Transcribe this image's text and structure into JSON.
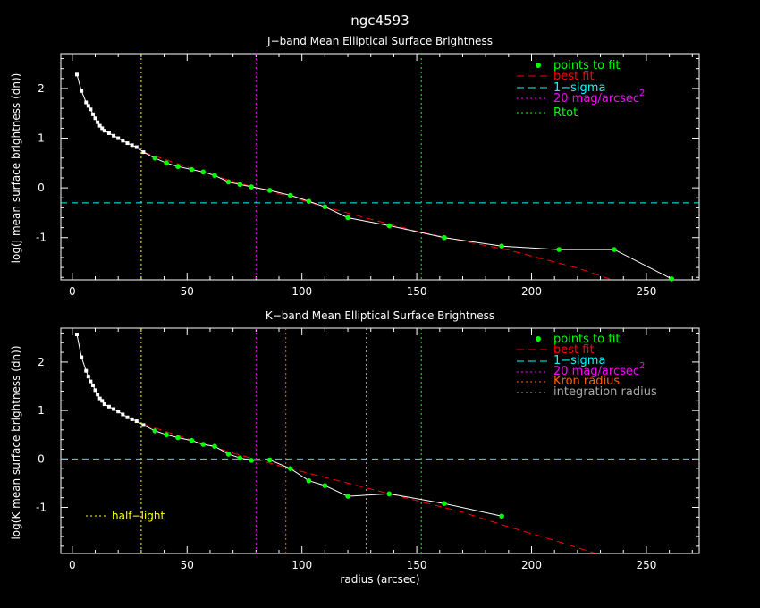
{
  "page_title": "ngc4593",
  "colors": {
    "background": "#000000",
    "axes": "#ffffff",
    "data_line": "#ffffff",
    "fit_points": "#00ff00",
    "best_fit": "#ff0000",
    "sigma": "#00ffff",
    "mag20": "#ff00ff",
    "rtot": "#00ff00",
    "half_light": "#ffff00",
    "kron": "#ff6000",
    "integration": "#aaaaaa"
  },
  "chart_data": [
    {
      "type": "line",
      "title": "J−band Mean Elliptical Surface Brightness",
      "xlabel": "",
      "ylabel": "log(J mean surface brightness (dn))",
      "xlim": [
        -5,
        273
      ],
      "ylim": [
        -1.85,
        2.7
      ],
      "xticks": [
        0,
        50,
        100,
        150,
        200,
        250
      ],
      "yticks": [
        -1,
        0,
        1,
        2
      ],
      "profile": {
        "x": [
          2,
          4,
          6,
          7,
          8,
          9,
          10,
          11,
          12,
          13,
          14,
          16,
          18,
          20,
          22,
          24,
          26,
          28,
          31,
          36,
          41,
          46,
          52,
          57,
          62,
          68,
          73,
          78,
          86,
          95,
          103,
          110,
          120,
          138,
          162,
          187,
          212,
          236,
          261
        ],
        "y": [
          2.28,
          1.95,
          1.72,
          1.65,
          1.58,
          1.48,
          1.4,
          1.32,
          1.25,
          1.2,
          1.15,
          1.1,
          1.05,
          1.0,
          0.95,
          0.9,
          0.86,
          0.82,
          0.72,
          0.6,
          0.5,
          0.43,
          0.37,
          0.32,
          0.25,
          0.12,
          0.07,
          0.02,
          -0.05,
          -0.15,
          -0.27,
          -0.38,
          -0.6,
          -0.76,
          -1.0,
          -1.17,
          -1.24,
          -1.24,
          -1.83
        ]
      },
      "fit_points_index_from": 19,
      "best_fit": {
        "x": [
          31,
          50,
          70,
          90,
          110,
          130,
          150,
          170,
          190,
          205,
          220,
          235
        ],
        "y": [
          0.72,
          0.42,
          0.13,
          -0.12,
          -0.38,
          -0.63,
          -0.87,
          -1.07,
          -1.25,
          -1.43,
          -1.61,
          -1.85
        ]
      },
      "sigma_level": -0.3,
      "vlines": [
        {
          "x": 30,
          "kind": "half_light"
        },
        {
          "x": 80,
          "kind": "mag20"
        },
        {
          "x": 152,
          "kind": "rtot"
        }
      ],
      "legend": {
        "points": "points to fit",
        "best_fit": "best fit",
        "sigma": "1−sigma",
        "mag20": "20 mag/arcsec",
        "mag20_sup": "2",
        "rtot": "Rtot"
      }
    },
    {
      "type": "line",
      "title": "K−band Mean Elliptical Surface Brightness",
      "xlabel": "radius (arcsec)",
      "ylabel": "log(K mean surface brightness (dn))",
      "xlim": [
        -5,
        273
      ],
      "ylim": [
        -1.95,
        2.7
      ],
      "xticks": [
        0,
        50,
        100,
        150,
        200,
        250
      ],
      "yticks": [
        -1,
        0,
        1,
        2
      ],
      "profile": {
        "x": [
          2,
          4,
          6,
          7,
          8,
          9,
          10,
          11,
          12,
          13,
          14,
          16,
          18,
          20,
          22,
          24,
          26,
          28,
          31,
          36,
          41,
          46,
          52,
          57,
          62,
          68,
          73,
          78,
          86,
          95,
          103,
          110,
          120,
          138,
          162,
          187
        ],
        "y": [
          2.57,
          2.1,
          1.82,
          1.7,
          1.6,
          1.52,
          1.42,
          1.33,
          1.25,
          1.2,
          1.13,
          1.08,
          1.03,
          0.98,
          0.92,
          0.86,
          0.82,
          0.78,
          0.7,
          0.58,
          0.5,
          0.44,
          0.38,
          0.3,
          0.26,
          0.1,
          0.02,
          -0.03,
          -0.02,
          -0.2,
          -0.45,
          -0.55,
          -0.77,
          -0.72,
          -0.92,
          -1.18
        ]
      },
      "fit_points_index_from": 19,
      "best_fit": {
        "x": [
          31,
          50,
          70,
          90,
          110,
          130,
          150,
          170,
          190,
          210,
          228
        ],
        "y": [
          0.72,
          0.42,
          0.12,
          -0.14,
          -0.38,
          -0.62,
          -0.86,
          -1.1,
          -1.4,
          -1.68,
          -1.95
        ]
      },
      "sigma_level": 0.0,
      "vlines": [
        {
          "x": 30,
          "kind": "half_light"
        },
        {
          "x": 80,
          "kind": "mag20"
        },
        {
          "x": 93,
          "kind": "kron"
        },
        {
          "x": 128,
          "kind": "integration"
        },
        {
          "x": 152,
          "kind": "rtot"
        }
      ],
      "legend": {
        "points": "points to fit",
        "best_fit": "best fit",
        "sigma": "1−sigma",
        "mag20": "20 mag/arcsec",
        "mag20_sup": "2",
        "kron": "Kron radius",
        "integration": "integration radius"
      },
      "annotation": "half−light"
    }
  ]
}
